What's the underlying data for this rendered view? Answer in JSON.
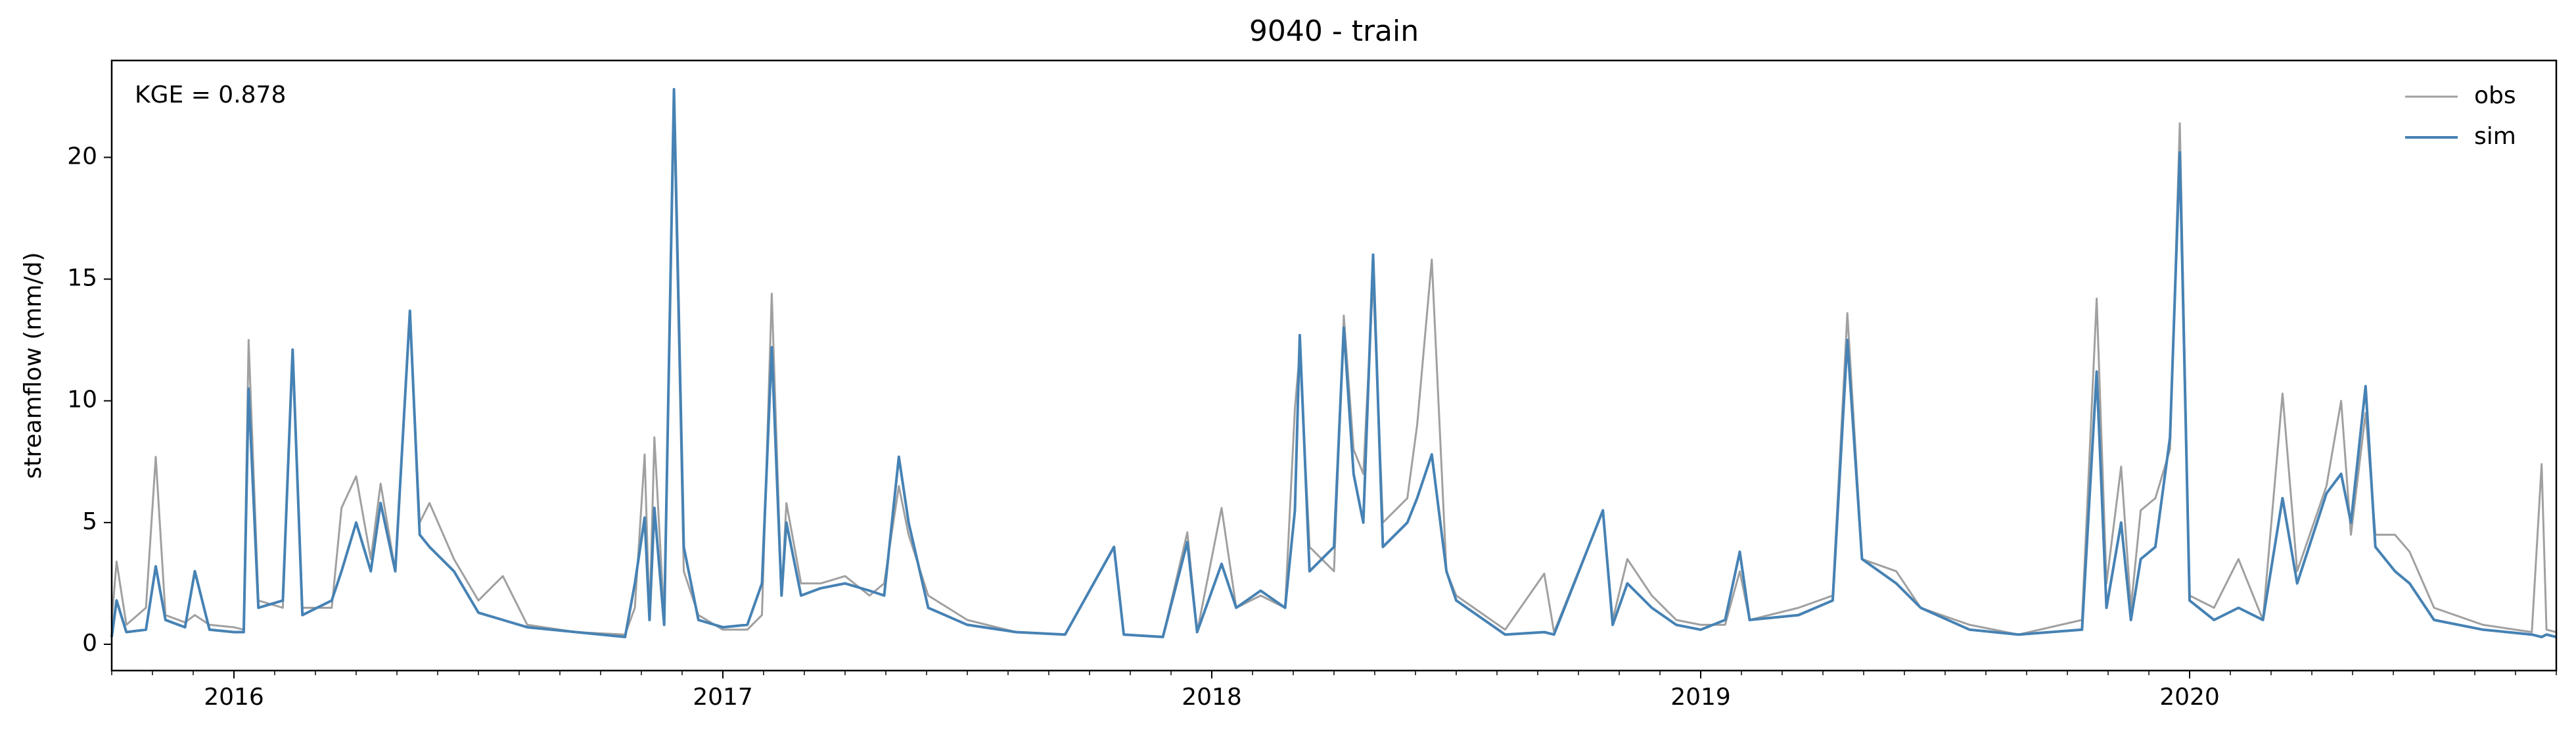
{
  "chart_data": {
    "type": "line",
    "title": "9040 - train",
    "ylabel": "streamflow (mm/d)",
    "annotation": "KGE = 0.878",
    "legend": "upper right",
    "grid": false,
    "xlim": [
      2015.75,
      2020.75
    ],
    "xticks": [
      2016,
      2017,
      2018,
      2019,
      2020
    ],
    "ylim": [
      -1.08,
      23.98
    ],
    "yticks": [
      0,
      5,
      10,
      15,
      20
    ],
    "x": [
      2015.75,
      2015.76,
      2015.78,
      2015.82,
      2015.84,
      2015.86,
      2015.9,
      2015.92,
      2015.95,
      2016.0,
      2016.02,
      2016.03,
      2016.05,
      2016.1,
      2016.12,
      2016.14,
      2016.2,
      2016.22,
      2016.25,
      2016.28,
      2016.3,
      2016.33,
      2016.36,
      2016.38,
      2016.4,
      2016.45,
      2016.5,
      2016.55,
      2016.6,
      2016.7,
      2016.8,
      2016.82,
      2016.84,
      2016.85,
      2016.86,
      2016.88,
      2016.9,
      2016.92,
      2016.95,
      2017.0,
      2017.05,
      2017.08,
      2017.1,
      2017.12,
      2017.13,
      2017.16,
      2017.2,
      2017.25,
      2017.3,
      2017.33,
      2017.36,
      2017.38,
      2017.42,
      2017.5,
      2017.6,
      2017.7,
      2017.8,
      2017.82,
      2017.9,
      2017.95,
      2017.97,
      2018.02,
      2018.05,
      2018.1,
      2018.15,
      2018.17,
      2018.18,
      2018.2,
      2018.25,
      2018.27,
      2018.29,
      2018.31,
      2018.33,
      2018.35,
      2018.4,
      2018.42,
      2018.45,
      2018.48,
      2018.5,
      2018.6,
      2018.68,
      2018.7,
      2018.8,
      2018.82,
      2018.85,
      2018.9,
      2018.95,
      2019.0,
      2019.05,
      2019.08,
      2019.1,
      2019.2,
      2019.27,
      2019.3,
      2019.33,
      2019.4,
      2019.45,
      2019.55,
      2019.65,
      2019.78,
      2019.81,
      2019.83,
      2019.86,
      2019.88,
      2019.9,
      2019.93,
      2019.96,
      2019.98,
      2020.0,
      2020.05,
      2020.1,
      2020.15,
      2020.19,
      2020.22,
      2020.28,
      2020.31,
      2020.33,
      2020.36,
      2020.38,
      2020.42,
      2020.45,
      2020.5,
      2020.6,
      2020.7,
      2020.72,
      2020.73,
      2020.75
    ],
    "series": [
      {
        "name": "obs",
        "color": "#a0a0a0",
        "values": [
          1.0,
          3.4,
          0.8,
          1.5,
          7.7,
          1.2,
          0.9,
          1.2,
          0.8,
          0.7,
          0.6,
          12.5,
          1.8,
          1.5,
          12.0,
          1.5,
          1.5,
          5.6,
          6.9,
          3.5,
          6.6,
          3,
          13.6,
          5,
          5.8,
          3.5,
          1.8,
          2.8,
          0.8,
          0.5,
          0.4,
          1.5,
          7.8,
          1.0,
          8.5,
          1.0,
          22.0,
          3,
          1.2,
          0.6,
          0.6,
          1.2,
          14.4,
          2.0,
          5.8,
          2.5,
          2.5,
          2.8,
          2.0,
          2.5,
          6.5,
          4.5,
          2.0,
          1.0,
          0.5,
          0.4,
          4.0,
          0.4,
          0.3,
          4.6,
          0.5,
          5.6,
          1.5,
          2.0,
          1.5,
          9.7,
          12.0,
          4,
          3,
          13.5,
          8.0,
          7,
          15,
          5,
          6,
          9,
          15.8,
          3,
          2.0,
          0.6,
          2.9,
          0.5,
          5.5,
          1,
          3.5,
          2.0,
          1.0,
          0.8,
          0.8,
          3.0,
          1.0,
          1.5,
          2.0,
          13.6,
          3.5,
          3.0,
          1.5,
          0.8,
          0.4,
          1.0,
          14.2,
          2.5,
          7.3,
          1.5,
          5.5,
          6.0,
          8.0,
          21.4,
          2.0,
          1.5,
          3.5,
          1.0,
          10.3,
          3.0,
          6.5,
          10.0,
          4.5,
          9.5,
          4.5,
          4.5,
          3.8,
          1.5,
          0.8,
          0.5,
          7.4,
          0.6,
          0.5
        ]
      },
      {
        "name": "sim",
        "color": "#4682b4",
        "values": [
          0.3,
          1.8,
          0.5,
          0.6,
          3.2,
          1.0,
          0.7,
          3.0,
          0.6,
          0.5,
          0.5,
          10.5,
          1.5,
          1.8,
          12.1,
          1.2,
          1.8,
          3.0,
          5.0,
          3.0,
          5.8,
          3,
          13.7,
          4.5,
          4.0,
          3.0,
          1.3,
          1.0,
          0.7,
          0.5,
          0.3,
          2.5,
          5.2,
          1.0,
          5.6,
          0.8,
          22.8,
          4,
          1.0,
          0.7,
          0.8,
          2.5,
          12.2,
          2.0,
          5.0,
          2.0,
          2.3,
          2.5,
          2.2,
          2.0,
          7.7,
          5.0,
          1.5,
          0.8,
          0.5,
          0.4,
          4.0,
          0.4,
          0.3,
          4.2,
          0.5,
          3.3,
          1.5,
          2.2,
          1.5,
          5.5,
          12.7,
          3,
          4,
          13.0,
          7.0,
          5,
          16,
          4,
          5,
          6,
          7.8,
          3,
          1.8,
          0.4,
          0.5,
          0.4,
          5.5,
          0.8,
          2.5,
          1.5,
          0.8,
          0.6,
          1.0,
          3.8,
          1.0,
          1.2,
          1.8,
          12.5,
          3.5,
          2.5,
          1.5,
          0.6,
          0.4,
          0.6,
          11.2,
          1.5,
          5.0,
          1.0,
          3.5,
          4.0,
          8.5,
          20.2,
          1.8,
          1.0,
          1.5,
          1.0,
          6.0,
          2.5,
          6.2,
          7.0,
          5.0,
          10.6,
          4.0,
          3.0,
          2.5,
          1.0,
          0.6,
          0.4,
          0.3,
          0.4,
          0.3
        ]
      }
    ]
  }
}
